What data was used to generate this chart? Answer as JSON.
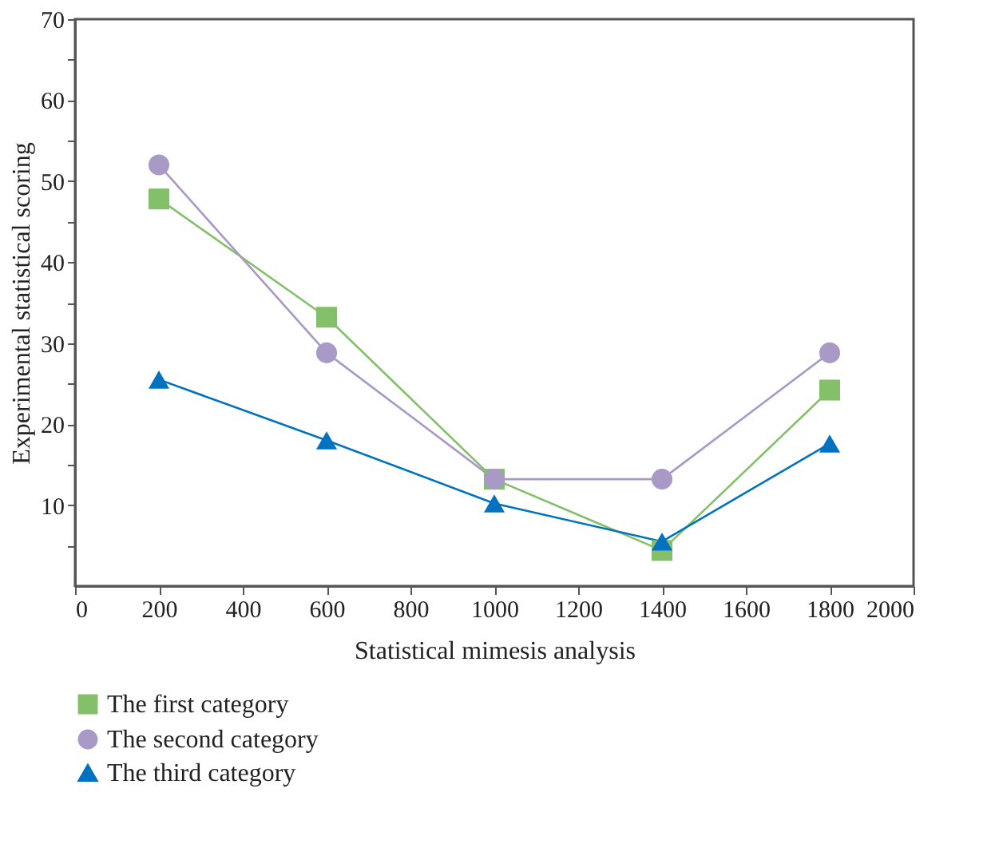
{
  "chart_data": {
    "type": "line",
    "xlabel": "Statistical mimesis analysis",
    "ylabel": "Experimental statistical scoring",
    "x": [
      200,
      600,
      1000,
      1400,
      1800
    ],
    "series": [
      {
        "name": "The first category",
        "color": "#84c06a",
        "marker": "square",
        "values": [
          47.8,
          33.2,
          13.2,
          4.4,
          24.2
        ]
      },
      {
        "name": "The second category",
        "color": "#a899c6",
        "marker": "circle",
        "values": [
          52,
          28.8,
          13.2,
          13.2,
          28.8
        ]
      },
      {
        "name": "The third category",
        "color": "#0072c0",
        "marker": "triangle",
        "values": [
          25.5,
          18,
          10.2,
          5.5,
          17.6
        ]
      }
    ],
    "xlim": [
      0,
      2000
    ],
    "xticks": [
      0,
      200,
      400,
      600,
      800,
      1000,
      1200,
      1400,
      1600,
      1800,
      2000
    ],
    "ylim": [
      0,
      70
    ],
    "yticks": [
      {
        "value": 5,
        "label": null
      },
      10,
      {
        "value": 15,
        "label": null
      },
      20,
      {
        "value": 25,
        "label": null
      },
      30,
      {
        "value": 35,
        "label": null
      },
      40,
      {
        "value": 45,
        "label": null
      },
      50,
      {
        "value": 55,
        "label": null
      },
      60,
      {
        "value": 65,
        "label": null
      },
      70
    ],
    "grid": false,
    "legend": "bottom",
    "line_style": "solid"
  }
}
